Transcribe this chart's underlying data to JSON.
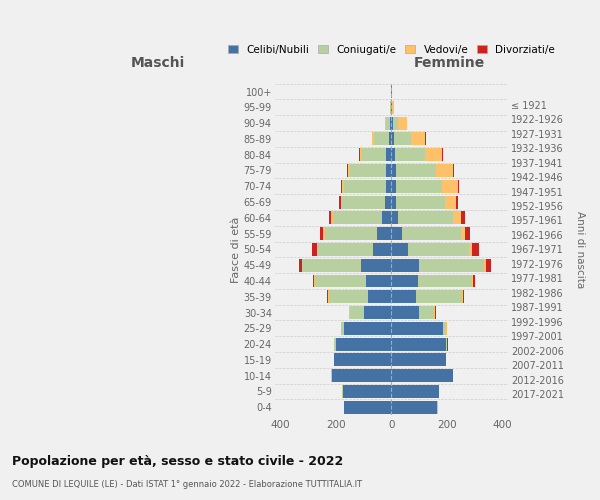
{
  "age_groups": [
    "0-4",
    "5-9",
    "10-14",
    "15-19",
    "20-24",
    "25-29",
    "30-34",
    "35-39",
    "40-44",
    "45-49",
    "50-54",
    "55-59",
    "60-64",
    "65-69",
    "70-74",
    "75-79",
    "80-84",
    "85-89",
    "90-94",
    "95-99",
    "100+"
  ],
  "birth_years": [
    "2017-2021",
    "2012-2016",
    "2007-2011",
    "2002-2006",
    "1997-2001",
    "1992-1996",
    "1987-1991",
    "1982-1986",
    "1977-1981",
    "1972-1976",
    "1967-1971",
    "1962-1966",
    "1957-1961",
    "1952-1956",
    "1947-1951",
    "1942-1946",
    "1937-1941",
    "1932-1936",
    "1927-1931",
    "1922-1926",
    "≤ 1921"
  ],
  "male": {
    "celibi": [
      170,
      175,
      215,
      205,
      200,
      170,
      100,
      85,
      90,
      110,
      65,
      50,
      35,
      22,
      20,
      20,
      18,
      8,
      4,
      2,
      2
    ],
    "coniugati": [
      1,
      1,
      2,
      2,
      5,
      10,
      50,
      140,
      185,
      210,
      200,
      190,
      175,
      155,
      150,
      130,
      90,
      55,
      15,
      2,
      0
    ],
    "vedovi": [
      0,
      0,
      0,
      0,
      0,
      1,
      1,
      2,
      3,
      3,
      4,
      5,
      6,
      6,
      8,
      5,
      6,
      5,
      3,
      1,
      0
    ],
    "divorziati": [
      0,
      0,
      0,
      0,
      1,
      2,
      3,
      5,
      5,
      10,
      15,
      12,
      10,
      5,
      5,
      5,
      3,
      1,
      1,
      0,
      0
    ]
  },
  "female": {
    "nubili": [
      165,
      170,
      220,
      195,
      195,
      185,
      100,
      90,
      95,
      100,
      60,
      40,
      25,
      18,
      18,
      15,
      12,
      10,
      5,
      2,
      2
    ],
    "coniugate": [
      1,
      1,
      2,
      2,
      5,
      12,
      55,
      165,
      195,
      235,
      220,
      210,
      195,
      175,
      165,
      145,
      110,
      60,
      20,
      2,
      0
    ],
    "vedove": [
      0,
      0,
      0,
      0,
      1,
      2,
      2,
      3,
      4,
      5,
      10,
      15,
      30,
      40,
      55,
      60,
      60,
      50,
      30,
      5,
      0
    ],
    "divorziate": [
      0,
      0,
      0,
      0,
      1,
      2,
      3,
      5,
      8,
      20,
      25,
      18,
      15,
      8,
      5,
      5,
      4,
      3,
      2,
      0,
      0
    ]
  },
  "colors": {
    "celibi": "#4472a4",
    "coniugati": "#b8cfa0",
    "vedovi": "#ffc06a",
    "divorziati": "#cc2222"
  },
  "title": "Popolazione per età, sesso e stato civile - 2022",
  "subtitle": "COMUNE DI LEQUILE (LE) - Dati ISTAT 1° gennaio 2022 - Elaborazione TUTTITALIA.IT",
  "xlabel_left": "Maschi",
  "xlabel_right": "Femmine",
  "ylabel_left": "Fasce di età",
  "ylabel_right": "Anni di nascita",
  "xlim": 420,
  "legend_labels": [
    "Celibi/Nubili",
    "Coniugati/e",
    "Vedovi/e",
    "Divorziati/e"
  ],
  "background_color": "#f0f0f0"
}
